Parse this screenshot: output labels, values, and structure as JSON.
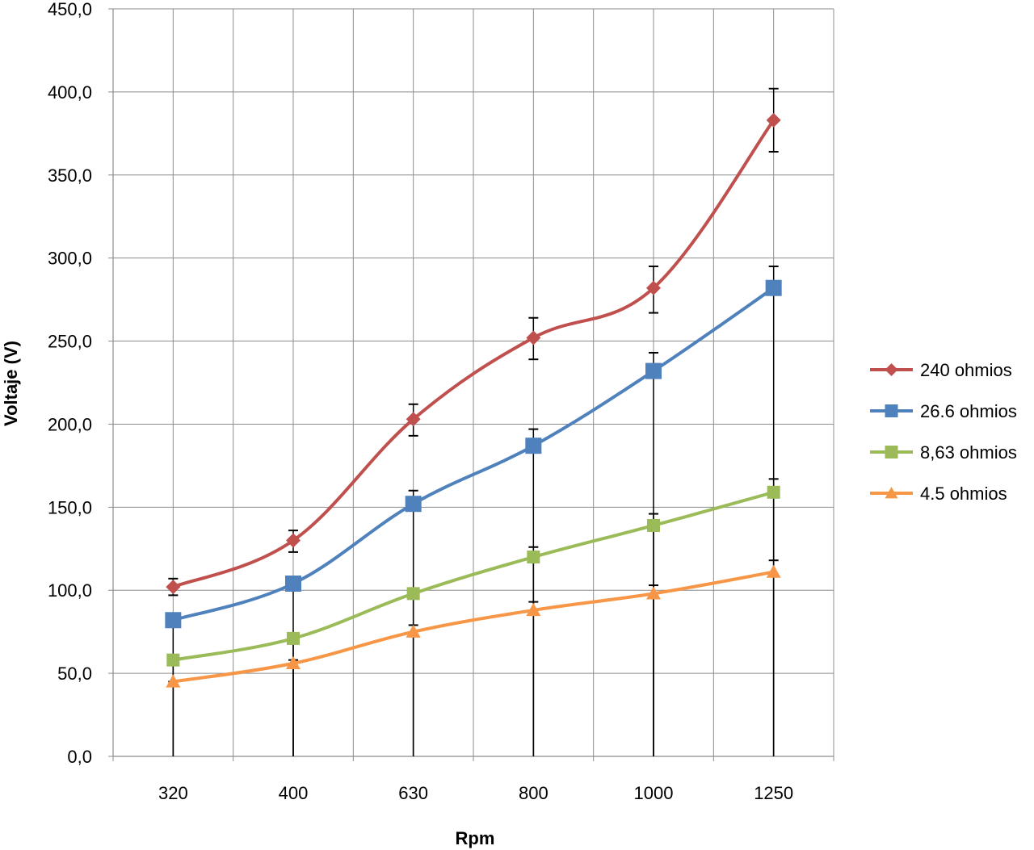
{
  "chart_data": {
    "type": "line",
    "xlabel": "Rpm",
    "ylabel": "Voltaje (V)",
    "categories": [
      "320",
      "400",
      "630",
      "800",
      "1000",
      "1250"
    ],
    "y_tick_labels": [
      "0,0",
      "50,0",
      "100,0",
      "150,0",
      "200,0",
      "250,0",
      "300,0",
      "350,0",
      "400,0",
      "450,0"
    ],
    "ylim": [
      0,
      450
    ],
    "y_major_step": 50,
    "grid": true,
    "smooth_lines": true,
    "error_bars": true,
    "legend_position": "right",
    "series": [
      {
        "name": "240 ohmios",
        "color": "#C0504D",
        "marker": "diamond",
        "values": [
          102,
          130,
          203,
          252,
          282,
          383
        ],
        "error_bar_top": [
          107,
          136,
          212,
          264,
          295,
          402
        ],
        "error_bar_bottom": [
          97,
          123,
          193,
          239,
          267,
          364
        ]
      },
      {
        "name": "26.6 ohmios",
        "color": "#4F81BD",
        "marker": "square",
        "values": [
          82,
          104,
          152,
          187,
          232,
          282
        ],
        "error_bar_top": [
          82,
          104,
          160,
          197,
          243,
          295
        ],
        "error_bar_bottom": [
          0,
          0,
          0,
          0,
          0,
          0
        ]
      },
      {
        "name": "8,63 ohmios",
        "color": "#9BBB59",
        "marker": "square",
        "values": [
          58,
          71,
          98,
          120,
          139,
          159
        ],
        "error_bar_top": [
          58,
          71,
          98,
          126,
          146,
          167
        ],
        "error_bar_bottom": [
          0,
          0,
          0,
          0,
          0,
          0
        ]
      },
      {
        "name": "4.5 ohmios",
        "color": "#F79646",
        "marker": "triangle",
        "values": [
          45,
          56,
          75,
          88,
          98,
          111
        ],
        "error_bar_top": [
          45,
          58,
          79,
          93,
          103,
          118
        ],
        "error_bar_bottom": [
          0,
          0,
          0,
          0,
          0,
          0
        ]
      }
    ]
  }
}
